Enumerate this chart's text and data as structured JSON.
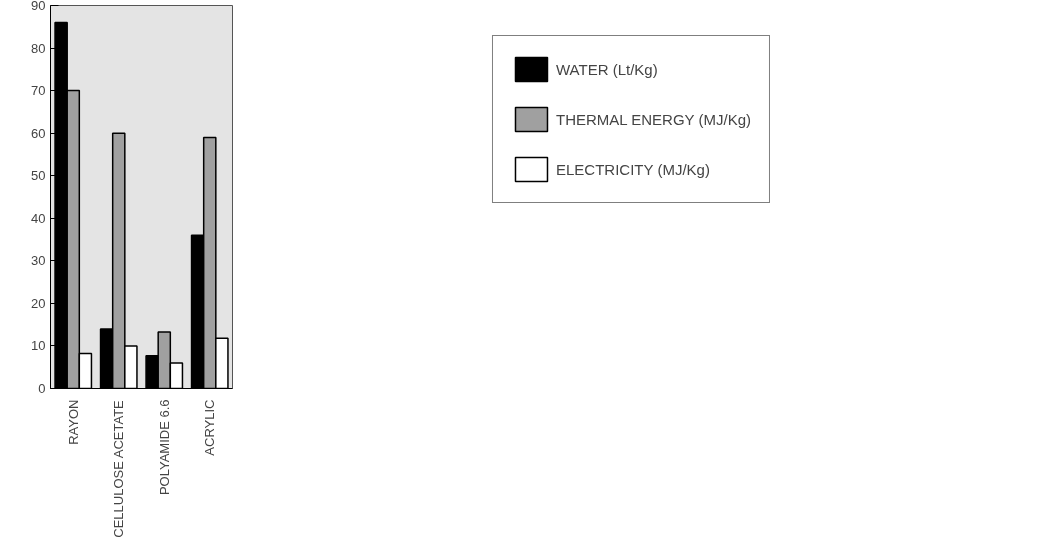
{
  "chart_data": {
    "type": "bar",
    "categories": [
      "RAYON",
      "CELLULOSE ACETATE",
      "POLYAMIDE 6.6",
      "ACRYLIC"
    ],
    "series": [
      {
        "name": "WATER (Lt/Kg)",
        "color": "#000000",
        "values": [
          86,
          14,
          7.7,
          36
        ]
      },
      {
        "name": "THERMAL ENERGY (MJ/Kg)",
        "color": "#a0a0a0",
        "values": [
          70,
          60,
          13.3,
          59
        ]
      },
      {
        "name": "ELECTRICITY (MJ/Kg)",
        "color": "#ffffff",
        "values": [
          8.2,
          10,
          6,
          11.8
        ]
      }
    ],
    "ylim": [
      0,
      90
    ],
    "yticks": [
      0,
      10,
      20,
      30,
      40,
      50,
      60,
      70,
      80,
      90
    ],
    "grid": false,
    "legend": "right"
  }
}
